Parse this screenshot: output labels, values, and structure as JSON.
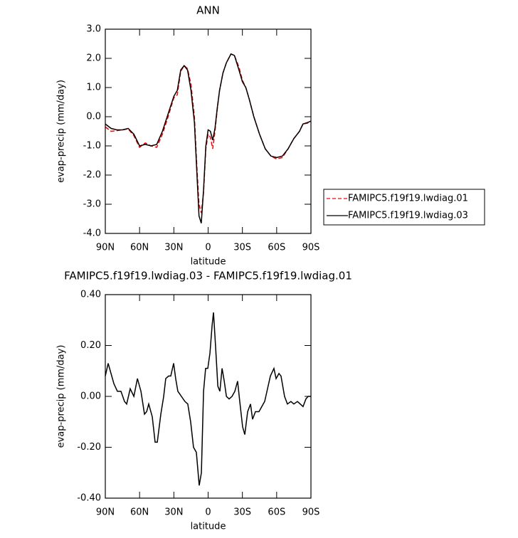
{
  "chart_data": [
    {
      "type": "line",
      "title": "ANN",
      "xlabel": "latitude",
      "ylabel": "evap-precip (mm/day)",
      "x": [
        90,
        85,
        80,
        75,
        70,
        65,
        60,
        55,
        50,
        45,
        40,
        35,
        30,
        27,
        24,
        21,
        18,
        15,
        12,
        10,
        8,
        6,
        4,
        2,
        0,
        -2,
        -4,
        -6,
        -8,
        -10,
        -13,
        -16,
        -20,
        -23,
        -27,
        -30,
        -33,
        -36,
        -40,
        -45,
        -50,
        -55,
        -60,
        -65,
        -70,
        -75,
        -80,
        -83,
        -87,
        -90
      ],
      "series": [
        {
          "name": "FAMIPC5.f19f19.lwdiag.01",
          "color": "#ff0000",
          "linestyle": "dashed",
          "values": [
            -0.35,
            -0.5,
            -0.48,
            -0.45,
            -0.42,
            -0.65,
            -1.05,
            -0.9,
            -1.0,
            -1.05,
            -0.6,
            0.0,
            0.65,
            0.75,
            1.55,
            1.75,
            1.65,
            1.1,
            0.0,
            -1.6,
            -3.0,
            -3.3,
            -2.6,
            -1.1,
            -0.6,
            -0.7,
            -1.1,
            -0.5,
            0.25,
            0.9,
            1.5,
            1.85,
            2.15,
            2.1,
            1.7,
            1.25,
            1.0,
            0.6,
            0.0,
            -0.6,
            -1.1,
            -1.35,
            -1.45,
            -1.4,
            -1.1,
            -0.75,
            -0.5,
            -0.25,
            -0.22,
            -0.15
          ]
        },
        {
          "name": "FAMIPC5.f19f19.lwdiag.03",
          "color": "#000000",
          "linestyle": "solid",
          "values": [
            -0.25,
            -0.4,
            -0.45,
            -0.45,
            -0.4,
            -0.6,
            -1.0,
            -0.95,
            -1.0,
            -0.95,
            -0.5,
            0.1,
            0.7,
            0.9,
            1.6,
            1.75,
            1.6,
            0.9,
            -0.2,
            -1.8,
            -3.4,
            -3.65,
            -2.5,
            -1.0,
            -0.45,
            -0.5,
            -0.8,
            -0.4,
            0.3,
            0.9,
            1.5,
            1.85,
            2.15,
            2.1,
            1.6,
            1.2,
            1.0,
            0.6,
            0.0,
            -0.6,
            -1.1,
            -1.35,
            -1.4,
            -1.35,
            -1.1,
            -0.75,
            -0.5,
            -0.25,
            -0.2,
            -0.15
          ]
        }
      ],
      "xlim": [
        90,
        -90
      ],
      "xticks": [
        {
          "value": 90,
          "label": "90N"
        },
        {
          "value": 60,
          "label": "60N"
        },
        {
          "value": 30,
          "label": "30N"
        },
        0,
        {
          "value": -30,
          "label": "30S"
        },
        {
          "value": -60,
          "label": "60S"
        },
        {
          "value": -90,
          "label": "90S"
        }
      ],
      "ylim": [
        -4,
        3
      ],
      "yticks": [
        {
          "value": 3,
          "label": "3.0"
        },
        {
          "value": 2,
          "label": "2.0"
        },
        {
          "value": 1,
          "label": "1.0"
        },
        {
          "value": 0,
          "label": "0.0"
        },
        {
          "value": -1,
          "label": "-1.0"
        },
        {
          "value": -2,
          "label": "-2.0"
        },
        {
          "value": -3,
          "label": "-3.0"
        },
        {
          "value": -4,
          "label": "-4.0"
        }
      ],
      "legend": "right"
    },
    {
      "type": "line",
      "title": "FAMIPC5.f19f19.lwdiag.03 - FAMIPC5.f19f19.lwdiag.01",
      "xlabel": "latitude",
      "ylabel": "evap-precip (mm/day)",
      "x": [
        90,
        87.5,
        82.5,
        79.4,
        76.3,
        73.2,
        71.3,
        68.2,
        65.0,
        61.9,
        58.8,
        55.7,
        53.8,
        52.0,
        48.9,
        46.4,
        44.5,
        41.4,
        38.9,
        37.1,
        34.6,
        32.7,
        30.2,
        28.4,
        26.5,
        23.4,
        20.3,
        17.8,
        15.3,
        12.8,
        10.3,
        7.8,
        5.9,
        4.0,
        2.2,
        0.3,
        -1.6,
        -3.5,
        -4.7,
        -6.6,
        -8.5,
        -10.3,
        -12.2,
        -14.1,
        -16.0,
        -18.4,
        -20.9,
        -23.4,
        -25.8,
        -27.7,
        -30.2,
        -32.1,
        -34.6,
        -37.1,
        -38.9,
        -41.4,
        -44.5,
        -47.0,
        -49.5,
        -52.0,
        -54.5,
        -57.6,
        -59.5,
        -62.0,
        -63.8,
        -66.9,
        -69.4,
        -72.5,
        -75.0,
        -78.2,
        -80.6,
        -83.1,
        -85.6,
        -87.5,
        -90
      ],
      "values": [
        0.08,
        0.13,
        0.05,
        0.02,
        0.02,
        -0.02,
        -0.03,
        0.03,
        0.0,
        0.07,
        0.02,
        -0.07,
        -0.06,
        -0.03,
        -0.08,
        -0.18,
        -0.18,
        -0.07,
        0.0,
        0.07,
        0.08,
        0.08,
        0.13,
        0.07,
        0.02,
        0.0,
        -0.02,
        -0.03,
        -0.1,
        -0.2,
        -0.22,
        -0.35,
        -0.3,
        0.02,
        0.11,
        0.11,
        0.17,
        0.28,
        0.33,
        0.19,
        0.04,
        0.02,
        0.11,
        0.06,
        0.0,
        -0.01,
        0.0,
        0.02,
        0.06,
        -0.02,
        -0.12,
        -0.15,
        -0.06,
        -0.03,
        -0.09,
        -0.06,
        -0.06,
        -0.04,
        -0.02,
        0.03,
        0.08,
        0.11,
        0.07,
        0.09,
        0.08,
        0.0,
        -0.03,
        -0.02,
        -0.03,
        -0.02,
        -0.03,
        -0.04,
        -0.01,
        0.0,
        0.0
      ],
      "color": "#000000",
      "xlim": [
        90,
        -90
      ],
      "xticks": [
        {
          "value": 90,
          "label": "90N"
        },
        {
          "value": 60,
          "label": "60N"
        },
        {
          "value": 30,
          "label": "30N"
        },
        0,
        {
          "value": -30,
          "label": "30S"
        },
        {
          "value": -60,
          "label": "60S"
        },
        {
          "value": -90,
          "label": "90S"
        }
      ],
      "ylim": [
        -0.4,
        0.4
      ],
      "yticks": [
        {
          "value": 0.4,
          "label": "0.40"
        },
        {
          "value": 0.2,
          "label": "0.20"
        },
        {
          "value": 0,
          "label": "0.00"
        },
        {
          "value": -0.2,
          "label": "-0.20"
        },
        {
          "value": -0.4,
          "label": "-0.40"
        }
      ]
    }
  ]
}
